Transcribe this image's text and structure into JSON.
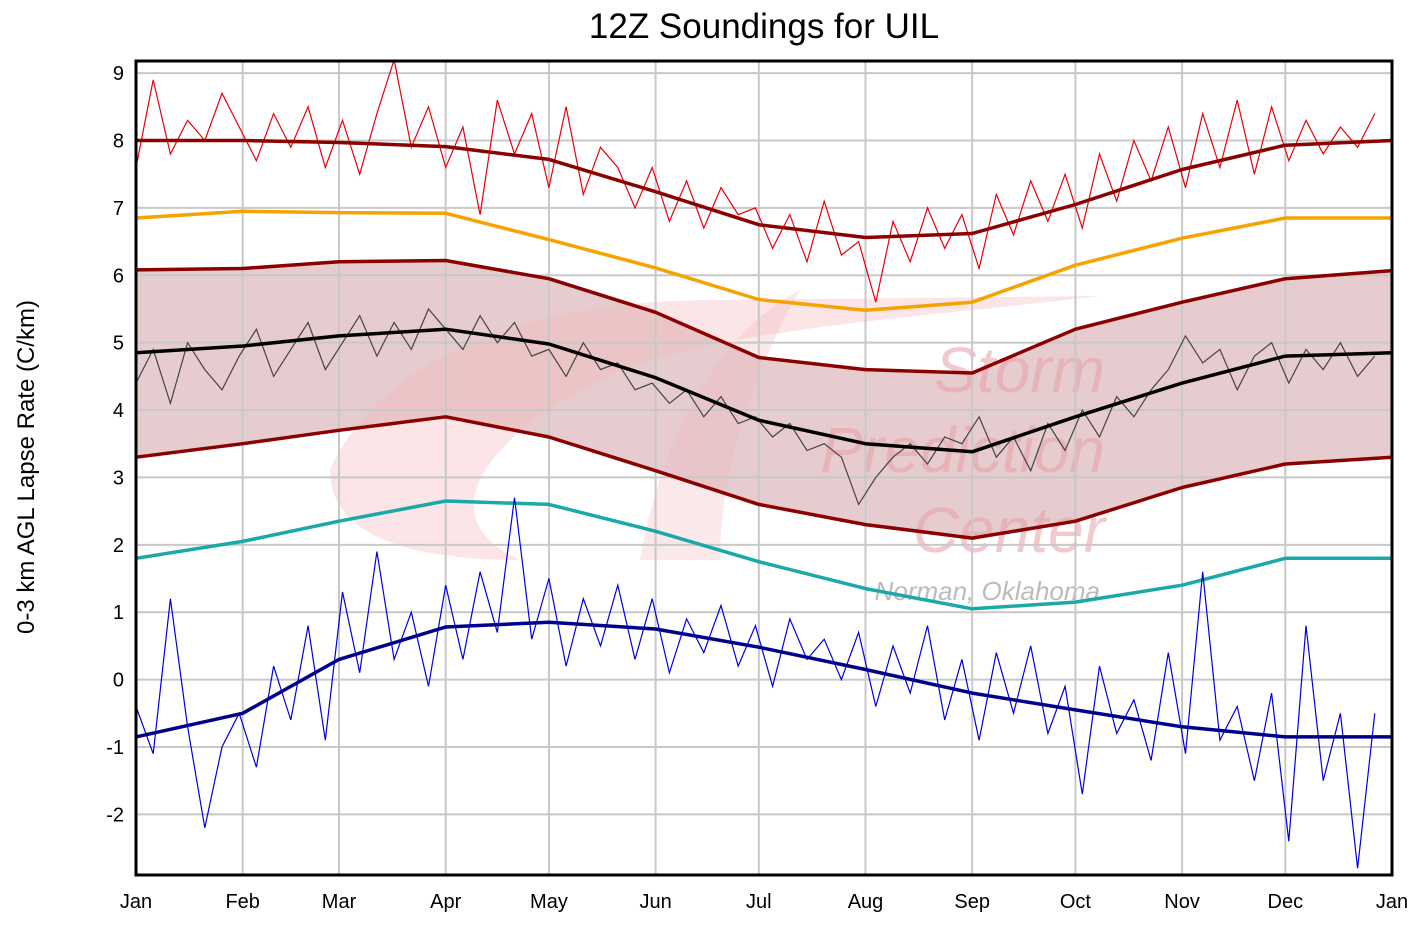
{
  "chart_data": {
    "type": "line",
    "title": "12Z Soundings for UIL",
    "xlabel": "",
    "ylabel": "0-3 km AGL Lapse Rate (C/km)",
    "ylim": [
      -2.9,
      9.18
    ],
    "yticks": [
      -2,
      -1,
      0,
      1,
      2,
      3,
      4,
      5,
      6,
      7,
      8,
      9
    ],
    "xticks": [
      "Jan",
      "Feb",
      "Mar",
      "Apr",
      "May",
      "Jun",
      "Jul",
      "Aug",
      "Sep",
      "Oct",
      "Nov",
      "Dec",
      "Jan"
    ],
    "grid": true,
    "legend": "none",
    "watermark": {
      "lines": [
        "Storm",
        "Prediction",
        "Center"
      ],
      "sub": "Norman, Oklahoma"
    },
    "smooth_x": [
      "Jan 1",
      "Feb 1",
      "Mar 1",
      "Apr 1",
      "May 1",
      "Jun 1",
      "Jul 1",
      "Aug 1",
      "Sep 1",
      "Oct 1",
      "Nov 1",
      "Dec 1",
      "Jan 1"
    ],
    "smooth_series": [
      {
        "id": "max-mean",
        "color": "#8b0000",
        "values": [
          8.0,
          8.0,
          7.97,
          7.91,
          7.72,
          7.24,
          6.75,
          6.56,
          6.62,
          7.05,
          7.57,
          7.93,
          8.0
        ]
      },
      {
        "id": "orange",
        "color": "#f5a300",
        "values": [
          6.85,
          6.95,
          6.93,
          6.92,
          6.53,
          6.11,
          5.64,
          5.48,
          5.6,
          6.15,
          6.55,
          6.85,
          6.85
        ]
      },
      {
        "id": "band-upper",
        "color": "#8b0000",
        "values": [
          6.08,
          6.1,
          6.2,
          6.22,
          5.95,
          5.45,
          4.78,
          4.6,
          4.55,
          5.2,
          5.6,
          5.95,
          6.07
        ]
      },
      {
        "id": "mean",
        "color": "#000000",
        "values": [
          4.85,
          4.95,
          5.1,
          5.2,
          4.98,
          4.48,
          3.85,
          3.5,
          3.38,
          3.9,
          4.4,
          4.8,
          4.85
        ]
      },
      {
        "id": "band-lower",
        "color": "#8b0000",
        "values": [
          3.3,
          3.5,
          3.7,
          3.9,
          3.6,
          3.1,
          2.6,
          2.3,
          2.1,
          2.35,
          2.85,
          3.2,
          3.3
        ]
      },
      {
        "id": "teal",
        "color": "#1aa8a8",
        "values": [
          1.8,
          2.05,
          2.35,
          2.65,
          2.6,
          2.2,
          1.75,
          1.35,
          1.05,
          1.15,
          1.4,
          1.8,
          1.8
        ]
      },
      {
        "id": "min-mean",
        "color": "#00008b",
        "values": [
          -0.85,
          -0.5,
          0.3,
          0.78,
          0.85,
          0.75,
          0.48,
          0.15,
          -0.2,
          -0.45,
          -0.7,
          -0.85,
          -0.85
        ]
      }
    ],
    "daily_x": {
      "start": "Jan 1",
      "step_days": 5
    },
    "daily_series": [
      {
        "id": "daily-max",
        "color": "#e8000b",
        "values": [
          7.6,
          8.9,
          7.8,
          8.3,
          8.0,
          8.7,
          8.2,
          7.7,
          8.4,
          7.9,
          8.5,
          7.6,
          8.3,
          7.5,
          8.4,
          9.2,
          7.9,
          8.5,
          7.6,
          8.2,
          6.9,
          8.6,
          7.8,
          8.4,
          7.3,
          8.5,
          7.2,
          7.9,
          7.6,
          7.0,
          7.6,
          6.8,
          7.4,
          6.7,
          7.3,
          6.9,
          7.0,
          6.4,
          6.9,
          6.2,
          7.1,
          6.3,
          6.5,
          5.6,
          6.8,
          6.2,
          7.0,
          6.4,
          6.9,
          6.1,
          7.2,
          6.6,
          7.4,
          6.8,
          7.5,
          6.7,
          7.8,
          7.1,
          8.0,
          7.4,
          8.2,
          7.3,
          8.4,
          7.6,
          8.6,
          7.5,
          8.5,
          7.7,
          8.3,
          7.8,
          8.2,
          7.9,
          8.4
        ]
      },
      {
        "id": "daily-mean",
        "color": "#444444",
        "values": [
          4.4,
          4.9,
          4.1,
          5.0,
          4.6,
          4.3,
          4.8,
          5.2,
          4.5,
          4.9,
          5.3,
          4.6,
          5.0,
          5.4,
          4.8,
          5.3,
          4.9,
          5.5,
          5.2,
          4.9,
          5.4,
          5.0,
          5.3,
          4.8,
          4.9,
          4.5,
          5.0,
          4.6,
          4.7,
          4.3,
          4.4,
          4.1,
          4.3,
          3.9,
          4.2,
          3.8,
          3.9,
          3.6,
          3.8,
          3.4,
          3.5,
          3.3,
          2.6,
          3.0,
          3.3,
          3.5,
          3.2,
          3.6,
          3.5,
          3.9,
          3.3,
          3.6,
          3.1,
          3.8,
          3.4,
          4.0,
          3.6,
          4.2,
          3.9,
          4.3,
          4.6,
          5.1,
          4.7,
          4.9,
          4.3,
          4.8,
          5.0,
          4.4,
          4.9,
          4.6,
          5.0,
          4.5,
          4.8
        ]
      },
      {
        "id": "daily-min",
        "color": "#0000e0",
        "values": [
          -0.4,
          -1.1,
          1.2,
          -0.7,
          -2.2,
          -1.0,
          -0.5,
          -1.3,
          0.2,
          -0.6,
          0.8,
          -0.9,
          1.3,
          0.1,
          1.9,
          0.3,
          1.0,
          -0.1,
          1.4,
          0.3,
          1.6,
          0.7,
          2.7,
          0.6,
          1.5,
          0.2,
          1.2,
          0.5,
          1.4,
          0.3,
          1.2,
          0.1,
          0.9,
          0.4,
          1.1,
          0.2,
          0.8,
          -0.1,
          0.9,
          0.3,
          0.6,
          0.0,
          0.7,
          -0.4,
          0.5,
          -0.2,
          0.8,
          -0.6,
          0.3,
          -0.9,
          0.4,
          -0.5,
          0.5,
          -0.8,
          -0.1,
          -1.7,
          0.2,
          -0.8,
          -0.3,
          -1.2,
          0.4,
          -1.1,
          1.6,
          -0.9,
          -0.4,
          -1.5,
          -0.2,
          -2.4,
          0.8,
          -1.5,
          -0.5,
          -2.8,
          -0.5
        ]
      }
    ],
    "band_fill_color": "#e2c3c6"
  }
}
